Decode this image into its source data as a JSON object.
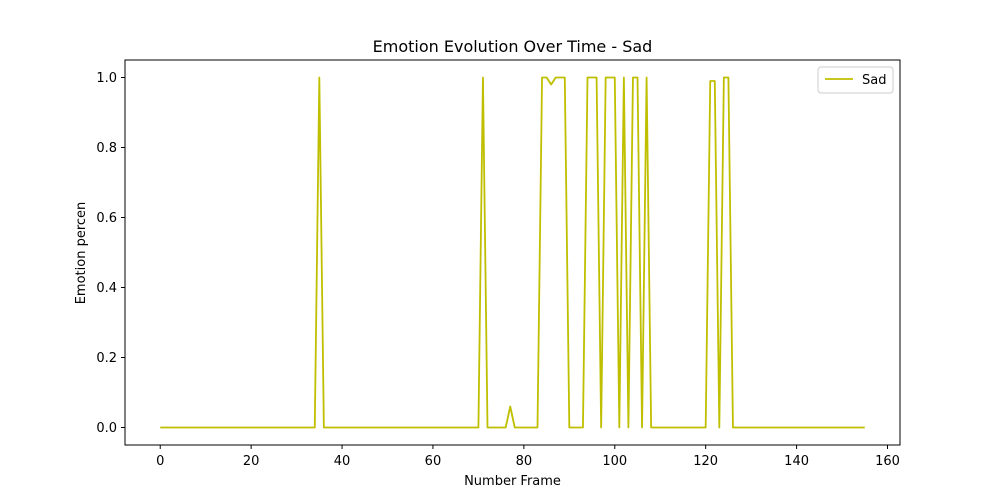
{
  "chart_data": {
    "type": "line",
    "title": "Emotion Evolution Over Time - Sad",
    "xlabel": "Number Frame",
    "ylabel": "Emotion percen",
    "xlim": [
      -7.75,
      162.75
    ],
    "ylim": [
      -0.05,
      1.05
    ],
    "xticks": [
      0,
      20,
      40,
      60,
      80,
      100,
      120,
      140,
      160
    ],
    "yticks": [
      0.0,
      0.2,
      0.4,
      0.6,
      0.8,
      1.0
    ],
    "ytick_labels": [
      "0.0",
      "0.2",
      "0.4",
      "0.6",
      "0.8",
      "1.0"
    ],
    "grid": false,
    "legend": {
      "placement": "top-right"
    },
    "series": [
      {
        "name": "Sad",
        "color": "#bfbf00",
        "x": [
          0,
          34,
          35,
          36,
          70,
          71,
          72,
          76,
          77,
          78,
          83,
          84,
          85,
          86,
          87,
          88,
          89,
          90,
          93,
          94,
          95,
          96,
          97,
          98,
          99,
          100,
          101,
          102,
          103,
          104,
          105,
          106,
          107,
          108,
          120,
          121,
          122,
          123,
          124,
          125,
          126,
          155
        ],
        "y": [
          0,
          0,
          1,
          0,
          0,
          1,
          0,
          0,
          0.06,
          0,
          0,
          1,
          1,
          0.98,
          1,
          1,
          1,
          0,
          0,
          1,
          1,
          1,
          0,
          1,
          1,
          1,
          0,
          1,
          0,
          1,
          1,
          0,
          1,
          0,
          0,
          0.99,
          0.99,
          0,
          1,
          1,
          0,
          0
        ]
      }
    ]
  }
}
